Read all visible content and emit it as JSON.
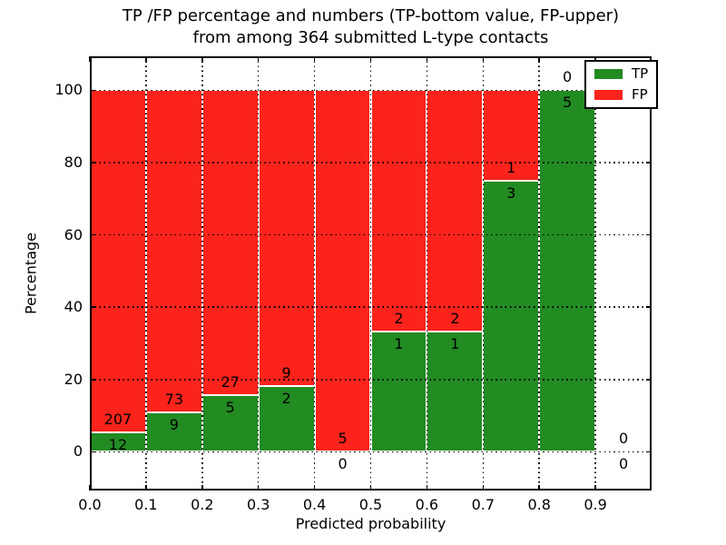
{
  "title": {
    "line1": "TP /FP percentage and numbers (TP-bottom value, FP-upper)",
    "line2": "from among 364 submitted L-type contacts"
  },
  "chart_data": {
    "type": "bar",
    "stacked": true,
    "title": "TP /FP percentage and numbers (TP-bottom value, FP-upper) from among 364 submitted L-type contacts",
    "xlabel": "Predicted probability",
    "ylabel": "Percentage",
    "xlim": [
      0.0,
      1.0
    ],
    "ylim": [
      -10.7,
      109.4
    ],
    "xticks": [
      0.0,
      0.1,
      0.2,
      0.3,
      0.4,
      0.5,
      0.6,
      0.7,
      0.8,
      0.9
    ],
    "yticks": [
      0,
      20,
      40,
      60,
      80,
      100
    ],
    "grid": true,
    "grid_style": "dotted",
    "bin_edges": [
      0.0,
      0.1,
      0.2,
      0.3,
      0.4,
      0.5,
      0.6,
      0.7,
      0.8,
      0.9,
      1.0
    ],
    "categories": [
      "0.0-0.1",
      "0.1-0.2",
      "0.2-0.3",
      "0.3-0.4",
      "0.4-0.5",
      "0.5-0.6",
      "0.6-0.7",
      "0.7-0.8",
      "0.8-0.9",
      "0.9-1.0"
    ],
    "series": [
      {
        "name": "TP",
        "color": "#228b22",
        "counts": [
          12,
          9,
          5,
          2,
          0,
          1,
          1,
          3,
          5,
          0
        ],
        "pct": [
          5.48,
          10.98,
          15.63,
          18.18,
          0,
          33.33,
          33.33,
          75,
          100,
          0
        ]
      },
      {
        "name": "FP",
        "color": "#fb231b",
        "counts": [
          207,
          73,
          27,
          9,
          5,
          2,
          2,
          1,
          0,
          0
        ],
        "pct": [
          94.52,
          89.02,
          84.37,
          81.82,
          100,
          66.67,
          66.67,
          25,
          0,
          0
        ]
      }
    ],
    "total_contacts": 364,
    "legend": {
      "position": "upper right",
      "entries": [
        "TP",
        "FP"
      ]
    },
    "label_offset_units": 3.5
  }
}
